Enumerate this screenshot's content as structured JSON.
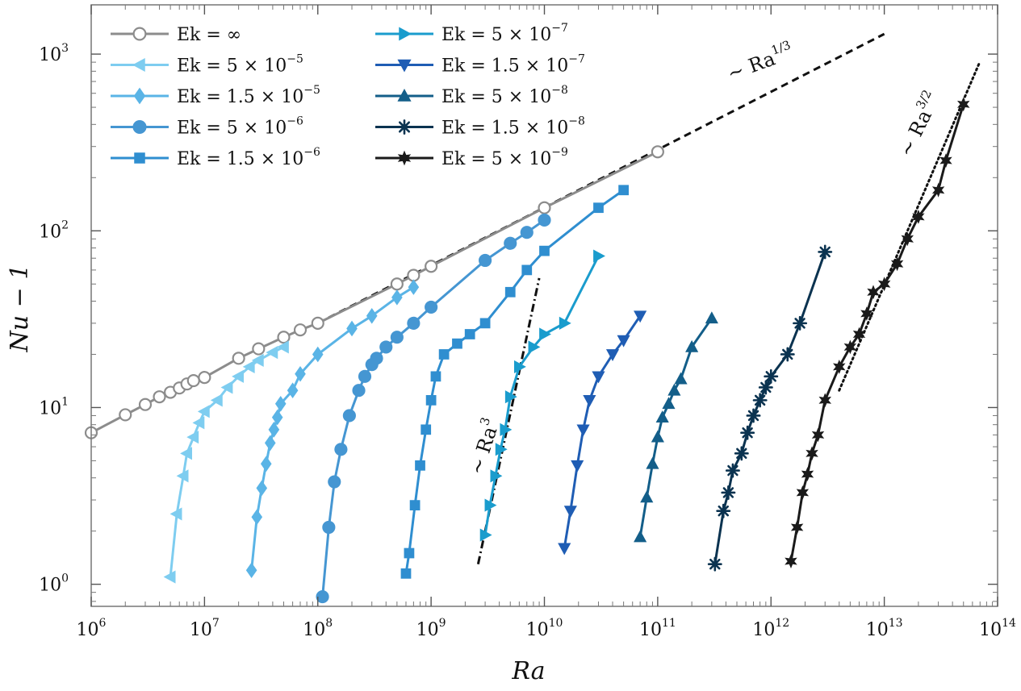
{
  "chart_data": {
    "type": "line",
    "title": "",
    "xlabel": "Ra",
    "ylabel": "Nu − 1",
    "x_scale": "log",
    "y_scale": "log",
    "xlim": [
      1000000.0,
      100000000000000.0
    ],
    "ylim": [
      0.75,
      1900
    ],
    "x_ticks": [
      {
        "base": "10",
        "exp": "6"
      },
      {
        "base": "10",
        "exp": "7"
      },
      {
        "base": "10",
        "exp": "8"
      },
      {
        "base": "10",
        "exp": "9"
      },
      {
        "base": "10",
        "exp": "10"
      },
      {
        "base": "10",
        "exp": "11"
      },
      {
        "base": "10",
        "exp": "12"
      },
      {
        "base": "10",
        "exp": "13"
      },
      {
        "base": "10",
        "exp": "14"
      }
    ],
    "y_ticks": [
      {
        "base": "10",
        "exp": "0"
      },
      {
        "base": "10",
        "exp": "1"
      },
      {
        "base": "10",
        "exp": "2"
      },
      {
        "base": "10",
        "exp": "3"
      }
    ],
    "grid": false,
    "legend_position": "top-left",
    "series": [
      {
        "name": "Ek = ∞",
        "label_base": "Ek = ∞",
        "label_exp": "",
        "color": "#8c8c8c",
        "marker": "circle-open",
        "x": [
          1000000.0,
          2000000.0,
          3000000.0,
          4000000.0,
          5000000.0,
          6000000.0,
          7000000.0,
          8000000.0,
          10000000.0,
          20000000.0,
          30000000.0,
          50000000.0,
          70000000.0,
          100000000.0,
          500000000.0,
          700000000.0,
          1000000000.0,
          10000000000.0,
          100000000000.0
        ],
        "y": [
          7.2,
          9.1,
          10.4,
          11.5,
          12.2,
          12.9,
          13.6,
          14.2,
          14.8,
          19,
          21.5,
          25,
          27.5,
          30,
          50,
          56,
          63,
          135,
          280
        ]
      },
      {
        "name": "Ek = 5 × 10⁻⁵",
        "label_base": "Ek = 5 × 10",
        "label_exp": "−5",
        "color": "#7ecdf0",
        "marker": "triangle-left",
        "x": [
          5000000.0,
          5700000.0,
          6500000.0,
          7000000.0,
          8000000.0,
          9000000.0,
          10000000.0,
          13000000.0,
          16000000.0,
          20000000.0,
          25000000.0,
          30000000.0,
          40000000.0,
          50000000.0
        ],
        "y": [
          1.1,
          2.5,
          4.1,
          5.5,
          6.8,
          8.2,
          9.5,
          11,
          13,
          15,
          17,
          18.5,
          20.5,
          22
        ]
      },
      {
        "name": "Ek = 1.5 × 10⁻⁵",
        "label_base": "Ek = 1.5 × 10",
        "label_exp": "−5",
        "color": "#5ab4e6",
        "marker": "diamond",
        "x": [
          26000000.0,
          29000000.0,
          32000000.0,
          35000000.0,
          38000000.0,
          41000000.0,
          44000000.0,
          47000000.0,
          60000000.0,
          70000000.0,
          100000000.0,
          200000000.0,
          300000000.0,
          500000000.0,
          700000000.0
        ],
        "y": [
          1.2,
          2.4,
          3.5,
          4.8,
          6.3,
          7.5,
          8.8,
          10.5,
          12.5,
          15.5,
          20,
          28,
          33,
          42,
          48
        ]
      },
      {
        "name": "Ek = 5 × 10⁻⁶",
        "label_base": "Ek = 5 × 10",
        "label_exp": "−6",
        "color": "#4596d2",
        "marker": "circle",
        "x": [
          110000000.0,
          125000000.0,
          140000000.0,
          160000000.0,
          190000000.0,
          230000000.0,
          260000000.0,
          300000000.0,
          330000000.0,
          400000000.0,
          500000000.0,
          700000000.0,
          1000000000.0,
          3000000000.0,
          5000000000.0,
          7000000000.0,
          10000000000.0
        ],
        "y": [
          0.85,
          2.1,
          3.8,
          5.8,
          9,
          12.5,
          15,
          17.5,
          19,
          22,
          25,
          30,
          37,
          68,
          85,
          98,
          115
        ]
      },
      {
        "name": "Ek = 1.5 × 10⁻⁶",
        "label_base": "Ek = 1.5 × 10",
        "label_exp": "−6",
        "color": "#2f8ed0",
        "marker": "square",
        "x": [
          600000000.0,
          640000000.0,
          720000000.0,
          800000000.0,
          900000000.0,
          1000000000.0,
          1100000000.0,
          1300000000.0,
          1700000000.0,
          2200000000.0,
          3000000000.0,
          5000000000.0,
          7000000000.0,
          10000000000.0,
          30000000000.0,
          50000000000.0
        ],
        "y": [
          1.15,
          1.5,
          2.8,
          4.7,
          7.5,
          11,
          15,
          20,
          23,
          26,
          30,
          45,
          60,
          77,
          135,
          170
        ]
      },
      {
        "name": "Ek = 5 × 10⁻⁷",
        "label_base": "Ek = 5 × 10",
        "label_exp": "−7",
        "color": "#1a9ccd",
        "marker": "triangle-right",
        "x": [
          3000000000.0,
          3300000000.0,
          3700000000.0,
          4100000000.0,
          4500000000.0,
          5000000000.0,
          6000000000.0,
          8000000000.0,
          10000000000.0,
          15000000000.0,
          30000000000.0
        ],
        "y": [
          1.9,
          2.8,
          4.1,
          5.8,
          7.5,
          11.5,
          17,
          22,
          26,
          30,
          72
        ]
      },
      {
        "name": "Ek = 1.5 × 10⁻⁷",
        "label_base": "Ek = 1.5 × 10",
        "label_exp": "−7",
        "color": "#1f5db4",
        "marker": "triangle-down",
        "x": [
          15000000000.0,
          17000000000.0,
          19500000000.0,
          22000000000.0,
          25000000000.0,
          30000000000.0,
          40000000000.0,
          50000000000.0,
          70000000000.0
        ],
        "y": [
          1.6,
          2.6,
          4.7,
          7.5,
          11,
          15,
          20,
          24,
          33
        ]
      },
      {
        "name": "Ek = 5 × 10⁻⁸",
        "label_base": "Ek = 5 × 10",
        "label_exp": "−8",
        "color": "#135e89",
        "marker": "triangle-up",
        "x": [
          70000000000.0,
          80000000000.0,
          90000000000.0,
          100000000000.0,
          110000000000.0,
          125000000000.0,
          140000000000.0,
          160000000000.0,
          200000000000.0,
          300000000000.0
        ],
        "y": [
          1.85,
          3.1,
          4.8,
          6.8,
          8.8,
          10.5,
          12.5,
          14.5,
          22,
          32
        ]
      },
      {
        "name": "Ek = 1.5 × 10⁻⁸",
        "label_base": "Ek = 1.5 × 10",
        "label_exp": "−8",
        "color": "#0b3350",
        "marker": "asterisk",
        "x": [
          320000000000.0,
          380000000000.0,
          420000000000.0,
          460000000000.0,
          550000000000.0,
          620000000000.0,
          700000000000.0,
          800000000000.0,
          900000000000.0,
          1000000000000.0,
          1400000000000.0,
          1800000000000.0,
          3000000000000.0
        ],
        "y": [
          1.3,
          2.6,
          3.3,
          4.4,
          5.5,
          7.2,
          9,
          11,
          13,
          15,
          20,
          30,
          76
        ]
      },
      {
        "name": "Ek = 5 × 10⁻⁹",
        "label_base": "Ek = 5 × 10",
        "label_exp": "−9",
        "color": "#1a1a1a",
        "marker": "star",
        "x": [
          1500000000000.0,
          1700000000000.0,
          1900000000000.0,
          2100000000000.0,
          2300000000000.0,
          2600000000000.0,
          3000000000000.0,
          4000000000000.0,
          5000000000000.0,
          6000000000000.0,
          7000000000000.0,
          8000000000000.0,
          10000000000000.0,
          13000000000000.0,
          16000000000000.0,
          20000000000000.0,
          30000000000000.0,
          35000000000000.0,
          50000000000000.0
        ],
        "y": [
          1.35,
          2.1,
          3.3,
          4.2,
          5.5,
          7,
          11,
          17,
          22,
          26,
          34,
          45,
          50,
          65,
          90,
          120,
          170,
          250,
          520
        ]
      }
    ],
    "annotations": [
      {
        "base": "∼ Ra",
        "exp": "1/3",
        "style": "dashed",
        "x": [
          100000000.0,
          10000000000000.0
        ],
        "y": [
          30,
          1300
        ]
      },
      {
        "base": "∼ Ra",
        "exp": "3",
        "style": "dashdot",
        "x": [
          2600000000.0,
          9000000000.0
        ],
        "y": [
          1.3,
          54
        ]
      },
      {
        "base": "∼ Ra",
        "exp": "3/2",
        "style": "dotted",
        "x": [
          4000000000000.0,
          70000000000000.0
        ],
        "y": [
          12.5,
          910
        ]
      }
    ]
  }
}
